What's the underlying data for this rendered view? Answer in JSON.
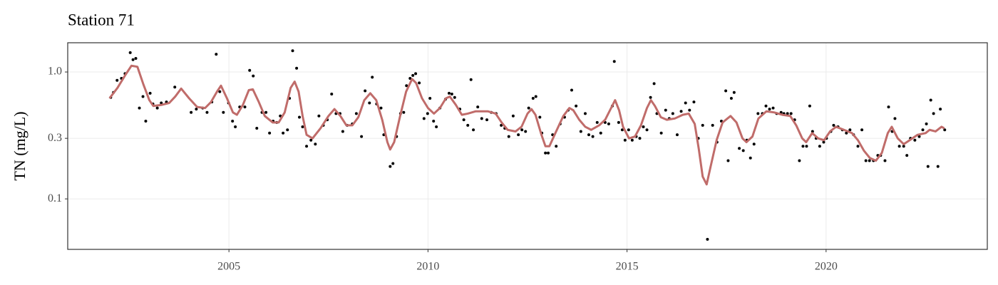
{
  "chart_data": {
    "type": "scatter",
    "title": "Station 71",
    "ylabel": "TN (mg/L)",
    "xlim": [
      2000.95,
      2024.05
    ],
    "xticks": [
      2005,
      2010,
      2015,
      2020
    ],
    "ylim": [
      0.04,
      1.7
    ],
    "yticks": [
      0.1,
      0.3,
      {
        "value": 1,
        "label": "1.0"
      }
    ],
    "ylog": true,
    "grid": true,
    "series": [
      {
        "type": "scatter",
        "color": "#000000",
        "x": [
          2002.03,
          2002.1,
          2002.19,
          2002.3,
          2002.39,
          2002.52,
          2002.59,
          2002.66,
          2002.75,
          2002.84,
          2002.91,
          2003.02,
          2003.09,
          2003.2,
          2003.3,
          2003.43,
          2003.64,
          2004.05,
          2004.18,
          2004.34,
          2004.45,
          2004.57,
          2004.68,
          2004.77,
          2004.86,
          2004.99,
          2005.09,
          2005.16,
          2005.27,
          2005.4,
          2005.52,
          2005.61,
          2005.7,
          2005.83,
          2005.93,
          2006.02,
          2006.11,
          2006.2,
          2006.29,
          2006.36,
          2006.47,
          2006.52,
          2006.6,
          2006.7,
          2006.77,
          2006.85,
          2006.95,
          2007.06,
          2007.17,
          2007.26,
          2007.37,
          2007.47,
          2007.58,
          2007.69,
          2007.79,
          2007.86,
          2007.97,
          2008.1,
          2008.2,
          2008.33,
          2008.42,
          2008.53,
          2008.6,
          2008.71,
          2008.82,
          2008.89,
          2009.05,
          2009.12,
          2009.21,
          2009.31,
          2009.39,
          2009.46,
          2009.55,
          2009.62,
          2009.69,
          2009.78,
          2009.9,
          2009.99,
          2010.05,
          2010.14,
          2010.21,
          2010.3,
          2010.44,
          2010.53,
          2010.6,
          2010.67,
          2010.8,
          2010.9,
          2011.0,
          2011.08,
          2011.14,
          2011.25,
          2011.35,
          2011.48,
          2011.59,
          2011.71,
          2011.84,
          2011.93,
          2012.03,
          2012.14,
          2012.27,
          2012.36,
          2012.45,
          2012.53,
          2012.64,
          2012.71,
          2012.81,
          2012.86,
          2012.95,
          2013.02,
          2013.13,
          2013.22,
          2013.32,
          2013.43,
          2013.52,
          2013.61,
          2013.72,
          2013.84,
          2013.95,
          2014.04,
          2014.14,
          2014.25,
          2014.34,
          2014.45,
          2014.54,
          2014.63,
          2014.68,
          2014.79,
          2014.88,
          2014.95,
          2015.04,
          2015.13,
          2015.23,
          2015.32,
          2015.41,
          2015.5,
          2015.59,
          2015.68,
          2015.75,
          2015.86,
          2015.97,
          2016.06,
          2016.15,
          2016.26,
          2016.36,
          2016.47,
          2016.57,
          2016.68,
          2016.79,
          2016.9,
          2017.02,
          2017.15,
          2017.26,
          2017.37,
          2017.48,
          2017.54,
          2017.62,
          2017.69,
          2017.82,
          2017.92,
          2018.01,
          2018.1,
          2018.19,
          2018.29,
          2018.4,
          2018.49,
          2018.58,
          2018.67,
          2018.76,
          2018.87,
          2018.94,
          2019.03,
          2019.12,
          2019.21,
          2019.33,
          2019.42,
          2019.51,
          2019.59,
          2019.66,
          2019.75,
          2019.84,
          2019.94,
          2020.01,
          2020.12,
          2020.19,
          2020.3,
          2020.41,
          2020.51,
          2020.6,
          2020.69,
          2020.8,
          2020.9,
          2021.0,
          2021.09,
          2021.19,
          2021.3,
          2021.37,
          2021.48,
          2021.57,
          2021.66,
          2021.73,
          2021.84,
          2021.95,
          2022.03,
          2022.12,
          2022.23,
          2022.34,
          2022.43,
          2022.52,
          2022.56,
          2022.63,
          2022.7,
          2022.81,
          2022.87,
          2022.98
        ],
        "values": [
          0.63,
          0.69,
          0.86,
          0.89,
          0.97,
          1.42,
          1.25,
          1.28,
          0.52,
          0.64,
          0.41,
          0.68,
          0.56,
          0.52,
          0.57,
          0.58,
          0.76,
          0.48,
          0.51,
          0.52,
          0.48,
          0.58,
          1.38,
          0.7,
          0.48,
          0.57,
          0.41,
          0.37,
          0.53,
          0.53,
          1.03,
          0.93,
          0.36,
          0.48,
          0.48,
          0.33,
          0.41,
          0.4,
          0.45,
          0.33,
          0.35,
          0.62,
          1.47,
          1.07,
          0.44,
          0.37,
          0.26,
          0.29,
          0.27,
          0.45,
          0.38,
          0.42,
          0.67,
          0.47,
          0.47,
          0.34,
          0.38,
          0.39,
          0.47,
          0.31,
          0.71,
          0.57,
          0.91,
          0.56,
          0.52,
          0.32,
          0.18,
          0.19,
          0.31,
          0.47,
          0.48,
          0.78,
          0.89,
          0.94,
          0.97,
          0.82,
          0.43,
          0.47,
          0.62,
          0.41,
          0.37,
          0.52,
          0.61,
          0.68,
          0.67,
          0.63,
          0.51,
          0.42,
          0.38,
          0.87,
          0.35,
          0.53,
          0.43,
          0.42,
          0.48,
          0.47,
          0.38,
          0.36,
          0.31,
          0.45,
          0.32,
          0.35,
          0.34,
          0.52,
          0.62,
          0.64,
          0.44,
          0.33,
          0.23,
          0.23,
          0.32,
          0.26,
          0.39,
          0.44,
          0.5,
          0.72,
          0.54,
          0.34,
          0.47,
          0.32,
          0.31,
          0.4,
          0.33,
          0.4,
          0.39,
          0.54,
          1.21,
          0.4,
          0.35,
          0.29,
          0.35,
          0.29,
          0.31,
          0.3,
          0.37,
          0.35,
          0.63,
          0.81,
          0.47,
          0.33,
          0.5,
          0.43,
          0.47,
          0.32,
          0.49,
          0.57,
          0.5,
          0.58,
          0.3,
          0.38,
          0.048,
          0.38,
          0.28,
          0.41,
          0.71,
          0.2,
          0.62,
          0.69,
          0.25,
          0.24,
          0.29,
          0.21,
          0.27,
          0.47,
          0.47,
          0.54,
          0.51,
          0.52,
          0.47,
          0.48,
          0.47,
          0.47,
          0.47,
          0.42,
          0.2,
          0.26,
          0.26,
          0.54,
          0.34,
          0.3,
          0.26,
          0.28,
          0.3,
          0.34,
          0.38,
          0.37,
          0.35,
          0.33,
          0.35,
          0.32,
          0.26,
          0.35,
          0.2,
          0.2,
          0.2,
          0.22,
          0.22,
          0.2,
          0.53,
          0.34,
          0.43,
          0.26,
          0.26,
          0.22,
          0.3,
          0.29,
          0.31,
          0.35,
          0.39,
          0.18,
          0.6,
          0.47,
          0.18,
          0.51,
          0.35
        ]
      },
      {
        "type": "line",
        "color": "#c06c6a",
        "x": [
          2002.0,
          2002.2,
          2002.4,
          2002.55,
          2002.7,
          2002.85,
          2003.0,
          2003.1,
          2003.3,
          2003.5,
          2003.65,
          2003.8,
          2004.0,
          2004.2,
          2004.4,
          2004.55,
          2004.7,
          2004.8,
          2004.95,
          2005.1,
          2005.2,
          2005.35,
          2005.5,
          2005.6,
          2005.75,
          2005.9,
          2006.1,
          2006.25,
          2006.4,
          2006.55,
          2006.65,
          2006.75,
          2006.85,
          2006.95,
          2007.1,
          2007.3,
          2007.5,
          2007.65,
          2007.8,
          2007.95,
          2008.1,
          2008.25,
          2008.4,
          2008.55,
          2008.7,
          2008.85,
          2008.98,
          2009.05,
          2009.15,
          2009.3,
          2009.45,
          2009.6,
          2009.7,
          2009.85,
          2010.0,
          2010.15,
          2010.3,
          2010.45,
          2010.55,
          2010.7,
          2010.85,
          2011.0,
          2011.2,
          2011.5,
          2011.7,
          2011.85,
          2012.0,
          2012.2,
          2012.35,
          2012.5,
          2012.6,
          2012.7,
          2012.85,
          2012.95,
          2013.05,
          2013.2,
          2013.4,
          2013.55,
          2013.65,
          2013.8,
          2013.95,
          2014.1,
          2014.3,
          2014.45,
          2014.6,
          2014.7,
          2014.8,
          2014.9,
          2015.05,
          2015.2,
          2015.35,
          2015.5,
          2015.6,
          2015.7,
          2015.85,
          2016.0,
          2016.2,
          2016.4,
          2016.55,
          2016.7,
          2016.8,
          2016.9,
          2017.0,
          2017.1,
          2017.25,
          2017.4,
          2017.6,
          2017.75,
          2017.9,
          2018.0,
          2018.15,
          2018.3,
          2018.5,
          2018.7,
          2018.9,
          2019.1,
          2019.25,
          2019.4,
          2019.5,
          2019.65,
          2019.8,
          2019.95,
          2020.1,
          2020.25,
          2020.45,
          2020.65,
          2020.8,
          2020.95,
          2021.1,
          2021.25,
          2021.4,
          2021.55,
          2021.65,
          2021.8,
          2021.95,
          2022.1,
          2022.3,
          2022.5,
          2022.6,
          2022.75,
          2022.9,
          2022.97
        ],
        "values": [
          0.62,
          0.75,
          0.95,
          1.12,
          1.1,
          0.8,
          0.6,
          0.54,
          0.55,
          0.57,
          0.64,
          0.74,
          0.62,
          0.53,
          0.52,
          0.58,
          0.7,
          0.78,
          0.62,
          0.48,
          0.46,
          0.55,
          0.72,
          0.73,
          0.58,
          0.45,
          0.4,
          0.4,
          0.48,
          0.75,
          0.84,
          0.7,
          0.45,
          0.32,
          0.3,
          0.36,
          0.45,
          0.51,
          0.45,
          0.38,
          0.38,
          0.44,
          0.6,
          0.68,
          0.6,
          0.42,
          0.28,
          0.245,
          0.28,
          0.45,
          0.7,
          0.88,
          0.82,
          0.62,
          0.52,
          0.47,
          0.52,
          0.62,
          0.64,
          0.55,
          0.46,
          0.47,
          0.49,
          0.49,
          0.47,
          0.4,
          0.35,
          0.34,
          0.37,
          0.47,
          0.51,
          0.46,
          0.32,
          0.26,
          0.26,
          0.33,
          0.45,
          0.52,
          0.5,
          0.42,
          0.37,
          0.35,
          0.38,
          0.42,
          0.52,
          0.6,
          0.5,
          0.37,
          0.3,
          0.31,
          0.38,
          0.52,
          0.6,
          0.54,
          0.44,
          0.42,
          0.43,
          0.46,
          0.47,
          0.39,
          0.25,
          0.15,
          0.13,
          0.18,
          0.29,
          0.4,
          0.45,
          0.4,
          0.3,
          0.28,
          0.31,
          0.43,
          0.49,
          0.48,
          0.46,
          0.45,
          0.38,
          0.3,
          0.28,
          0.33,
          0.3,
          0.29,
          0.34,
          0.37,
          0.35,
          0.33,
          0.29,
          0.24,
          0.21,
          0.2,
          0.23,
          0.33,
          0.37,
          0.3,
          0.27,
          0.29,
          0.32,
          0.33,
          0.35,
          0.34,
          0.37,
          0.36
        ]
      }
    ]
  }
}
